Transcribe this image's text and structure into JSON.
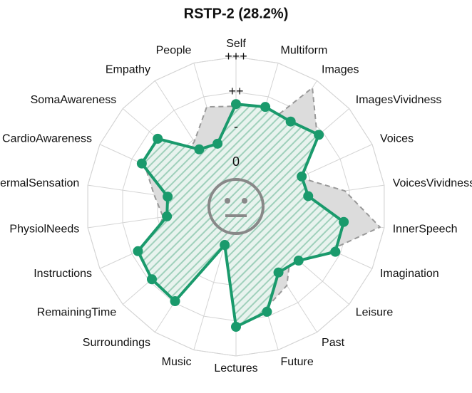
{
  "chart_data": {
    "type": "radar",
    "title": "RSTP-2 (28.2%)",
    "categories": [
      "Self",
      "Multiform",
      "Images",
      "ImagesVividness",
      "Voices",
      "VoicesVividness",
      "InnerSpeech",
      "Imagination",
      "Leisure",
      "Past",
      "Future",
      "Lectures",
      "Music",
      "Surroundings",
      "RemainingTime",
      "Instructions",
      "PhysiolNeeds",
      "ThermalSensation",
      "CardioAwareness",
      "SomaAwareness",
      "Empathy",
      "People"
    ],
    "rlim": [
      -1.25,
      3
    ],
    "rticks": [
      0,
      {
        "value": 1,
        "label": "-"
      },
      {
        "value": 2,
        "label": "++"
      },
      {
        "value": 3,
        "label": "+++"
      }
    ],
    "grid": true,
    "series": [
      {
        "color": "#999999",
        "line_style": "dashed",
        "fill": "#dcdcdc",
        "values": [
          1.6,
          1.0,
          2.76,
          1.8,
          0.73,
          1.87,
          2.88,
          1.71,
          0.8,
          1.42,
          1.77,
          1.58,
          -0.1,
          1.75,
          1.62,
          1.4,
          0.84,
          1.1,
          1.6,
          0.77,
          0.94,
          1.7
        ]
      },
      {
        "color": "#1a9a6c",
        "line_style": "solid",
        "fill": "hatch",
        "values": [
          1.66,
          1.7,
          1.62,
          1.86,
          0.8,
          0.82,
          1.84,
          1.85,
          1.1,
          0.98,
          1.87,
          2.17,
          -0.11,
          1.95,
          1.91,
          1.81,
          0.73,
          0.71,
          1.69,
          1.69,
          0.68,
          0.61
        ]
      }
    ]
  }
}
